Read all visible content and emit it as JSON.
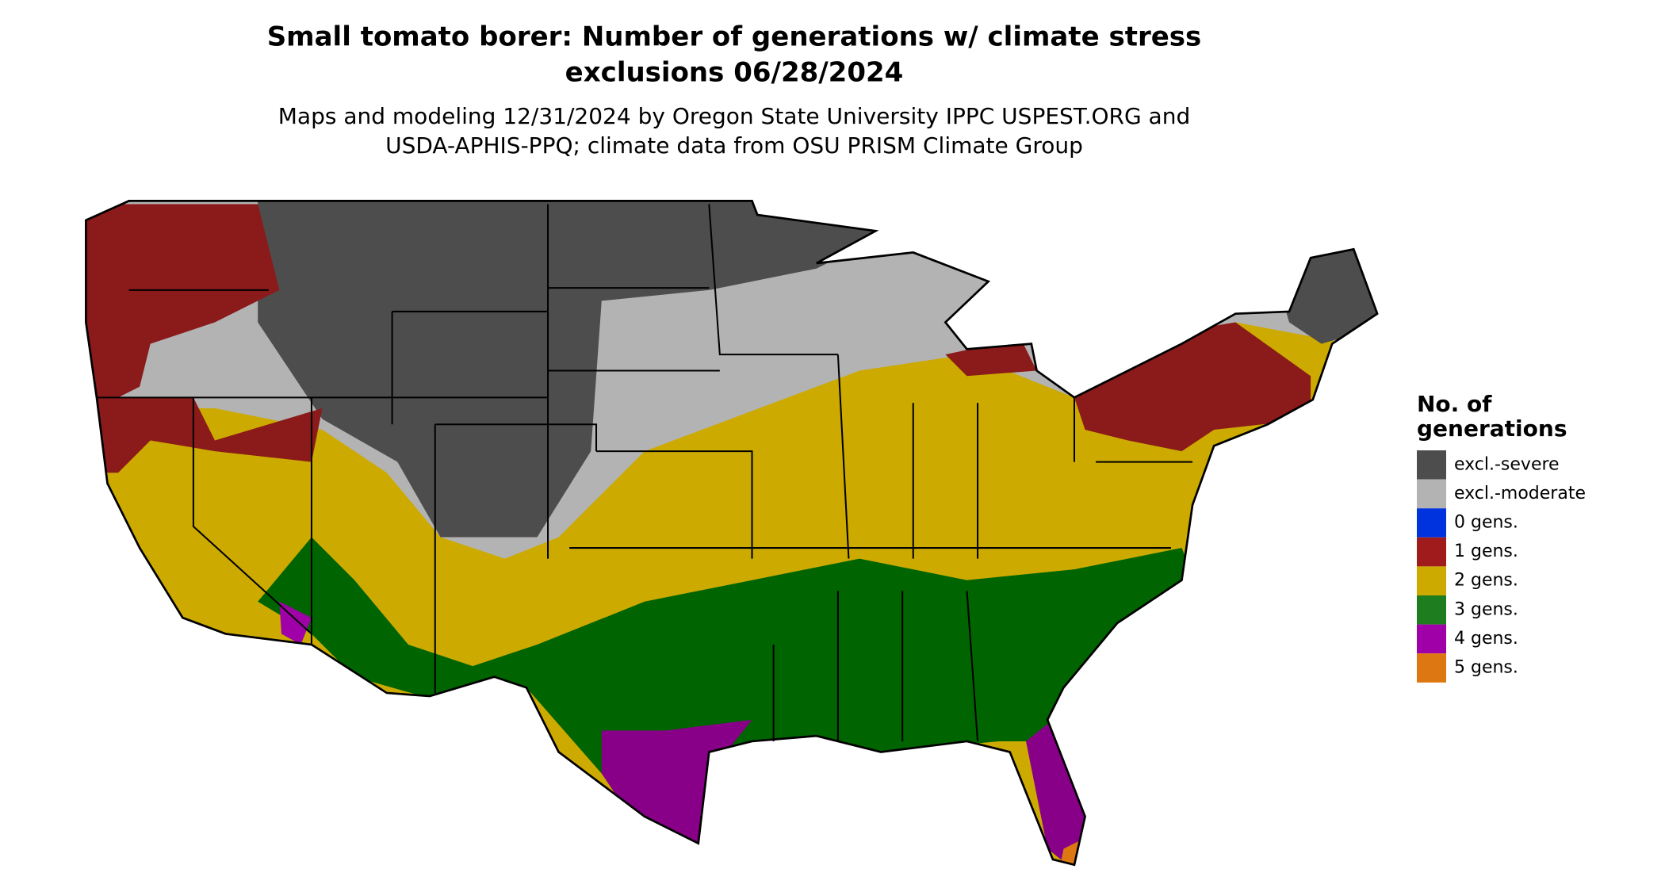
{
  "header": {
    "title": [
      "Small tomato borer: Number of generations w/ climate stress",
      "exclusions 06/28/2024"
    ],
    "subtitle": [
      "Maps and modeling 12/31/2024 by Oregon State University IPPC USPEST.ORG and",
      "USDA-APHIS-PPQ; climate data from OSU PRISM Climate Group"
    ]
  },
  "legend": {
    "title": [
      "No. of",
      "generations"
    ],
    "items": [
      {
        "label": "excl.-severe",
        "color": "#4d4d4d"
      },
      {
        "label": "excl.-moderate",
        "color": "#b3b3b3"
      },
      {
        "label": "0 gens.",
        "color": "#0033dd"
      },
      {
        "label": "1 gens.",
        "color": "#a01c1c"
      },
      {
        "label": "2 gens.",
        "color": "#ccaa00"
      },
      {
        "label": "3 gens.",
        "color": "#1e7d1e"
      },
      {
        "label": "4 gens.",
        "color": "#a000a8"
      },
      {
        "label": "5 gens.",
        "color": "#dd7711"
      }
    ]
  }
}
